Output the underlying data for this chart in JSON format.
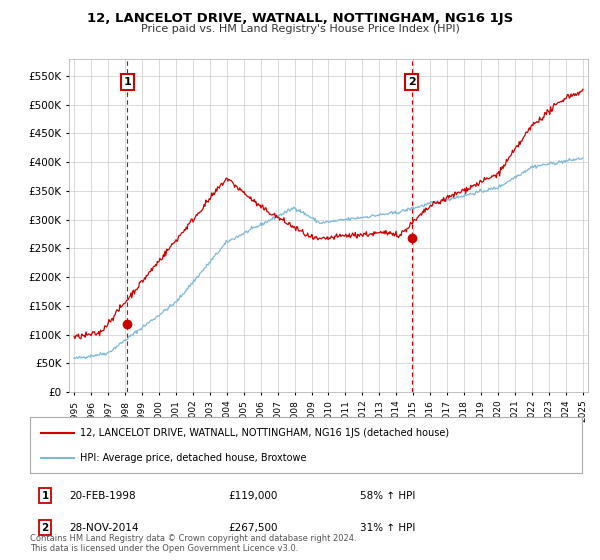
{
  "title": "12, LANCELOT DRIVE, WATNALL, NOTTINGHAM, NG16 1JS",
  "subtitle": "Price paid vs. HM Land Registry's House Price Index (HPI)",
  "legend_line1": "12, LANCELOT DRIVE, WATNALL, NOTTINGHAM, NG16 1JS (detached house)",
  "legend_line2": "HPI: Average price, detached house, Broxtowe",
  "annotation1_label": "1",
  "annotation1_date": "20-FEB-1998",
  "annotation1_price": "£119,000",
  "annotation1_pct": "58% ↑ HPI",
  "annotation2_label": "2",
  "annotation2_date": "28-NOV-2014",
  "annotation2_price": "£267,500",
  "annotation2_pct": "31% ↑ HPI",
  "footer": "Contains HM Land Registry data © Crown copyright and database right 2024.\nThis data is licensed under the Open Government Licence v3.0.",
  "hpi_color": "#7fb9d8",
  "price_color": "#cc0000",
  "annotation_color": "#cc0000",
  "background_color": "#ffffff",
  "grid_color": "#cccccc",
  "ylim": [
    0,
    580000
  ],
  "yticks": [
    0,
    50000,
    100000,
    150000,
    200000,
    250000,
    300000,
    350000,
    400000,
    450000,
    500000,
    550000
  ],
  "sale1_x": 1998.13,
  "sale1_y": 119000,
  "sale2_x": 2014.91,
  "sale2_y": 267500,
  "xlim_min": 1994.7,
  "xlim_max": 2025.3
}
